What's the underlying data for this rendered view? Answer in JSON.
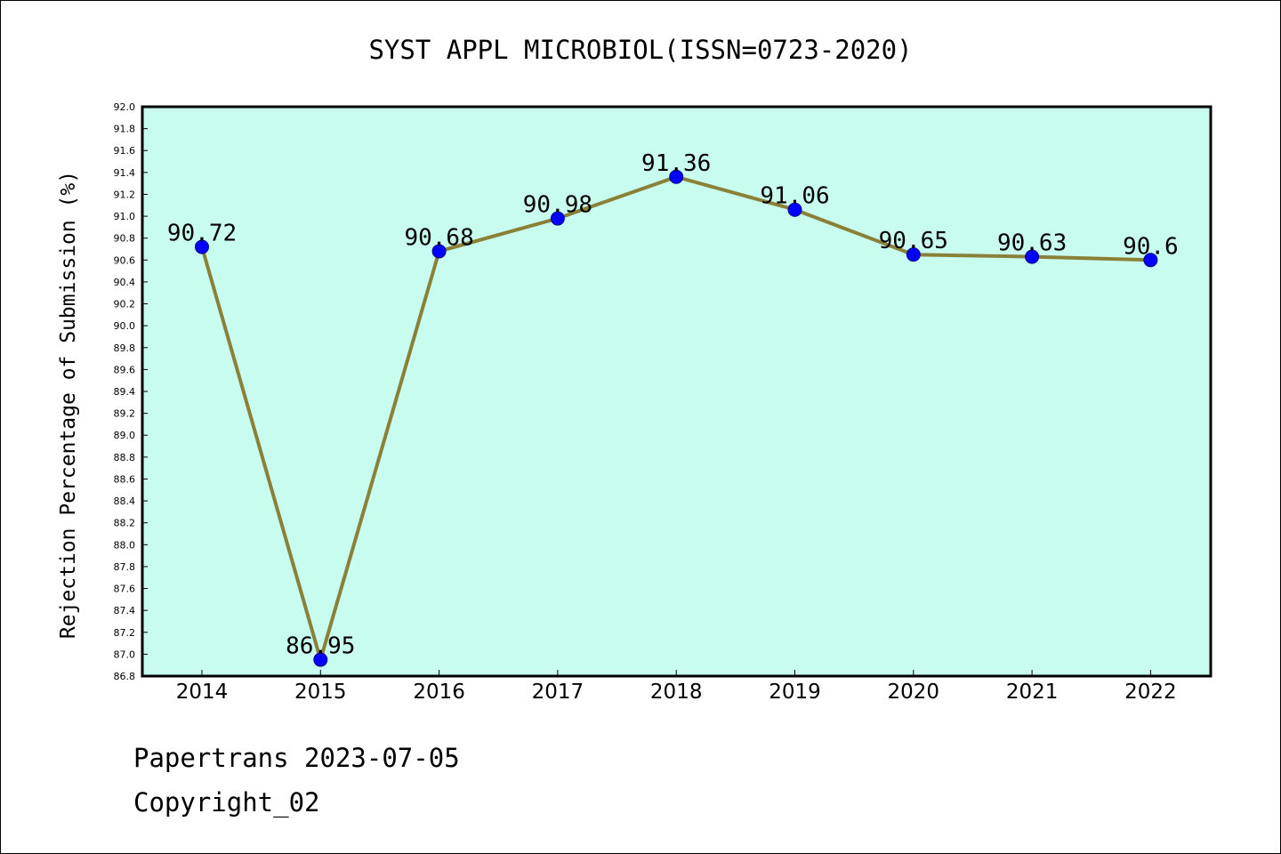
{
  "chart_data": {
    "type": "line",
    "title": "SYST APPL MICROBIOL(ISSN=0723-2020)",
    "xlabel": "",
    "ylabel": "Rejection Percentage of Submission (%)",
    "categories": [
      "2014",
      "2015",
      "2016",
      "2017",
      "2018",
      "2019",
      "2020",
      "2021",
      "2022"
    ],
    "series": [
      {
        "values": [
          90.72,
          86.95,
          90.68,
          90.98,
          91.36,
          91.06,
          90.65,
          90.63,
          90.6
        ],
        "labels": [
          "90.72",
          "86.95",
          "90.68",
          "90.98",
          "91.36",
          "91.06",
          "90.65",
          "90.63",
          "90.6"
        ]
      }
    ],
    "ylim": [
      86.8,
      92.0
    ],
    "ytick_step": 0.2,
    "grid": false,
    "colors": {
      "plot_background": "#c8fcee",
      "line": "#8b8038",
      "marker": "#0000ff"
    }
  },
  "footer": {
    "line1": "Papertrans 2023-07-05",
    "line2": "Copyright_02"
  }
}
